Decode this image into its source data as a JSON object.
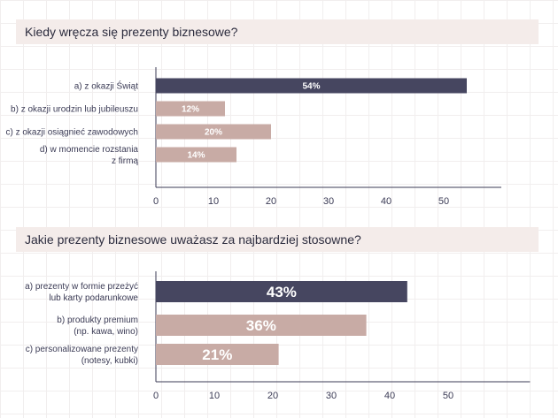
{
  "colors": {
    "primary_bar": "#464660",
    "secondary_bar": "#c8aba5",
    "band": "#f4ecea",
    "axis": "#3b3b55"
  },
  "chart_data": [
    {
      "type": "bar",
      "orientation": "horizontal",
      "title": "Kiedy wręcza się prezenty biznesowe?",
      "categories": [
        [
          "a) z okazji Świąt"
        ],
        [
          "b) z okazji urodzin lub jubileuszu"
        ],
        [
          "c) z okazji osiągnieć zawodowych"
        ],
        [
          "d) w momencie rozstania",
          "z firmą"
        ]
      ],
      "values": [
        54,
        12,
        20,
        14
      ],
      "data_labels": [
        "54%",
        "12%",
        "20%",
        "14%"
      ],
      "xlim": [
        0,
        60
      ],
      "xticks": [
        "0",
        "10",
        "20",
        "30",
        "40",
        "50"
      ],
      "grid": false
    },
    {
      "type": "bar",
      "orientation": "horizontal",
      "title": "Jakie prezenty biznesowe uważasz za najbardziej stosowne?",
      "categories": [
        [
          "a) prezenty w formie przeżyć",
          "lub karty podarunkowe"
        ],
        [
          "b) produkty premium",
          "(np. kawa, wino)"
        ],
        [
          "c) personalizowane prezenty",
          "(notesy, kubki)"
        ]
      ],
      "values": [
        43,
        36,
        21
      ],
      "data_labels": [
        "43%",
        "36%",
        "21%"
      ],
      "xlim": [
        0,
        64
      ],
      "xticks": [
        "0",
        "10",
        "20",
        "30",
        "40",
        "50"
      ],
      "grid": false
    }
  ]
}
